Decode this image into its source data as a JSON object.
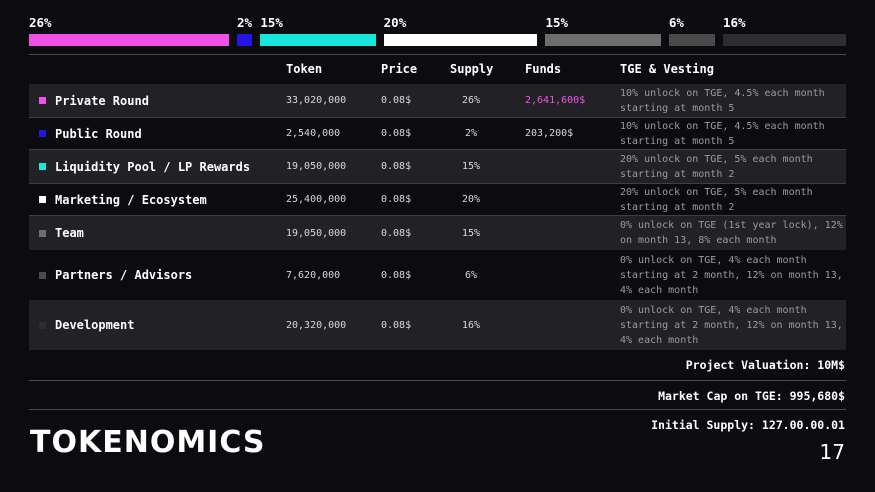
{
  "distribution_bar": [
    {
      "label": "26%",
      "value": 26,
      "color": "#f050e6"
    },
    {
      "label": "2%",
      "value": 2,
      "color": "#2414e6"
    },
    {
      "label": "15%",
      "value": 15,
      "color": "#16e6dc"
    },
    {
      "label": "20%",
      "value": 20,
      "color": "#ffffff"
    },
    {
      "label": "15%",
      "value": 15,
      "color": "#6e6e6e"
    },
    {
      "label": "6%",
      "value": 6,
      "color": "#4a4a4a"
    },
    {
      "label": "16%",
      "value": 16,
      "color": "#2e2e32"
    }
  ],
  "table": {
    "headers": {
      "token": "Token",
      "price": "Price",
      "supply": "Supply",
      "funds": "Funds",
      "vesting": "TGE & Vesting"
    },
    "rows": [
      {
        "name": "Private Round",
        "color": "#f050e6",
        "token": "33,020,000",
        "price": "0.08$",
        "supply": "26%",
        "funds": "2,641,600$",
        "funds_color": "#f050e6",
        "vesting": "10% unlock on TGE, 4.5% each month starting at month 5"
      },
      {
        "name": "Public Round",
        "color": "#2414e6",
        "token": "2,540,000",
        "price": "0.08$",
        "supply": "2%",
        "funds": "203,200$",
        "funds_color": "#d8d8d8",
        "vesting": "10% unlock on TGE, 4.5% each month starting at month 5"
      },
      {
        "name": "Liquidity Pool / LP Rewards",
        "color": "#16e6dc",
        "token": "19,050,000",
        "price": "0.08$",
        "supply": "15%",
        "funds": "",
        "funds_color": "#d8d8d8",
        "vesting": "20% unlock on TGE, 5% each month starting at month 2"
      },
      {
        "name": "Marketing / Ecosystem",
        "color": "#ffffff",
        "token": "25,400,000",
        "price": "0.08$",
        "supply": "20%",
        "funds": "",
        "funds_color": "#d8d8d8",
        "vesting": "20% unlock on TGE, 5% each month starting at month 2"
      },
      {
        "name": "Team",
        "color": "#6e6e6e",
        "token": "19,050,000",
        "price": "0.08$",
        "supply": "15%",
        "funds": "",
        "funds_color": "#d8d8d8",
        "vesting": "0% unlock on TGE (1st year lock), 12% on month 13, 8% each month"
      },
      {
        "name": "Partners / Advisors",
        "color": "#4a4a4a",
        "token": "7,620,000",
        "price": "0.08$",
        "supply": "6%",
        "funds": "",
        "funds_color": "#d8d8d8",
        "vesting": "0% unlock on TGE, 4% each month starting at 2 month, 12% on month 13, 4% each month"
      },
      {
        "name": "Development",
        "color": "#2e2e32",
        "token": "20,320,000",
        "price": "0.08$",
        "supply": "16%",
        "funds": "",
        "funds_color": "#d8d8d8",
        "vesting": "0% unlock on TGE, 4% each month starting at 2 month, 12% on month 13, 4% each month"
      }
    ]
  },
  "summary": {
    "valuation": "Project Valuation: 10M$",
    "market_cap": "Market Cap on TGE: 995,680$",
    "initial_supply": "Initial Supply: 127.00.00.01"
  },
  "title": "TOKENOMICS",
  "page_number": "17"
}
